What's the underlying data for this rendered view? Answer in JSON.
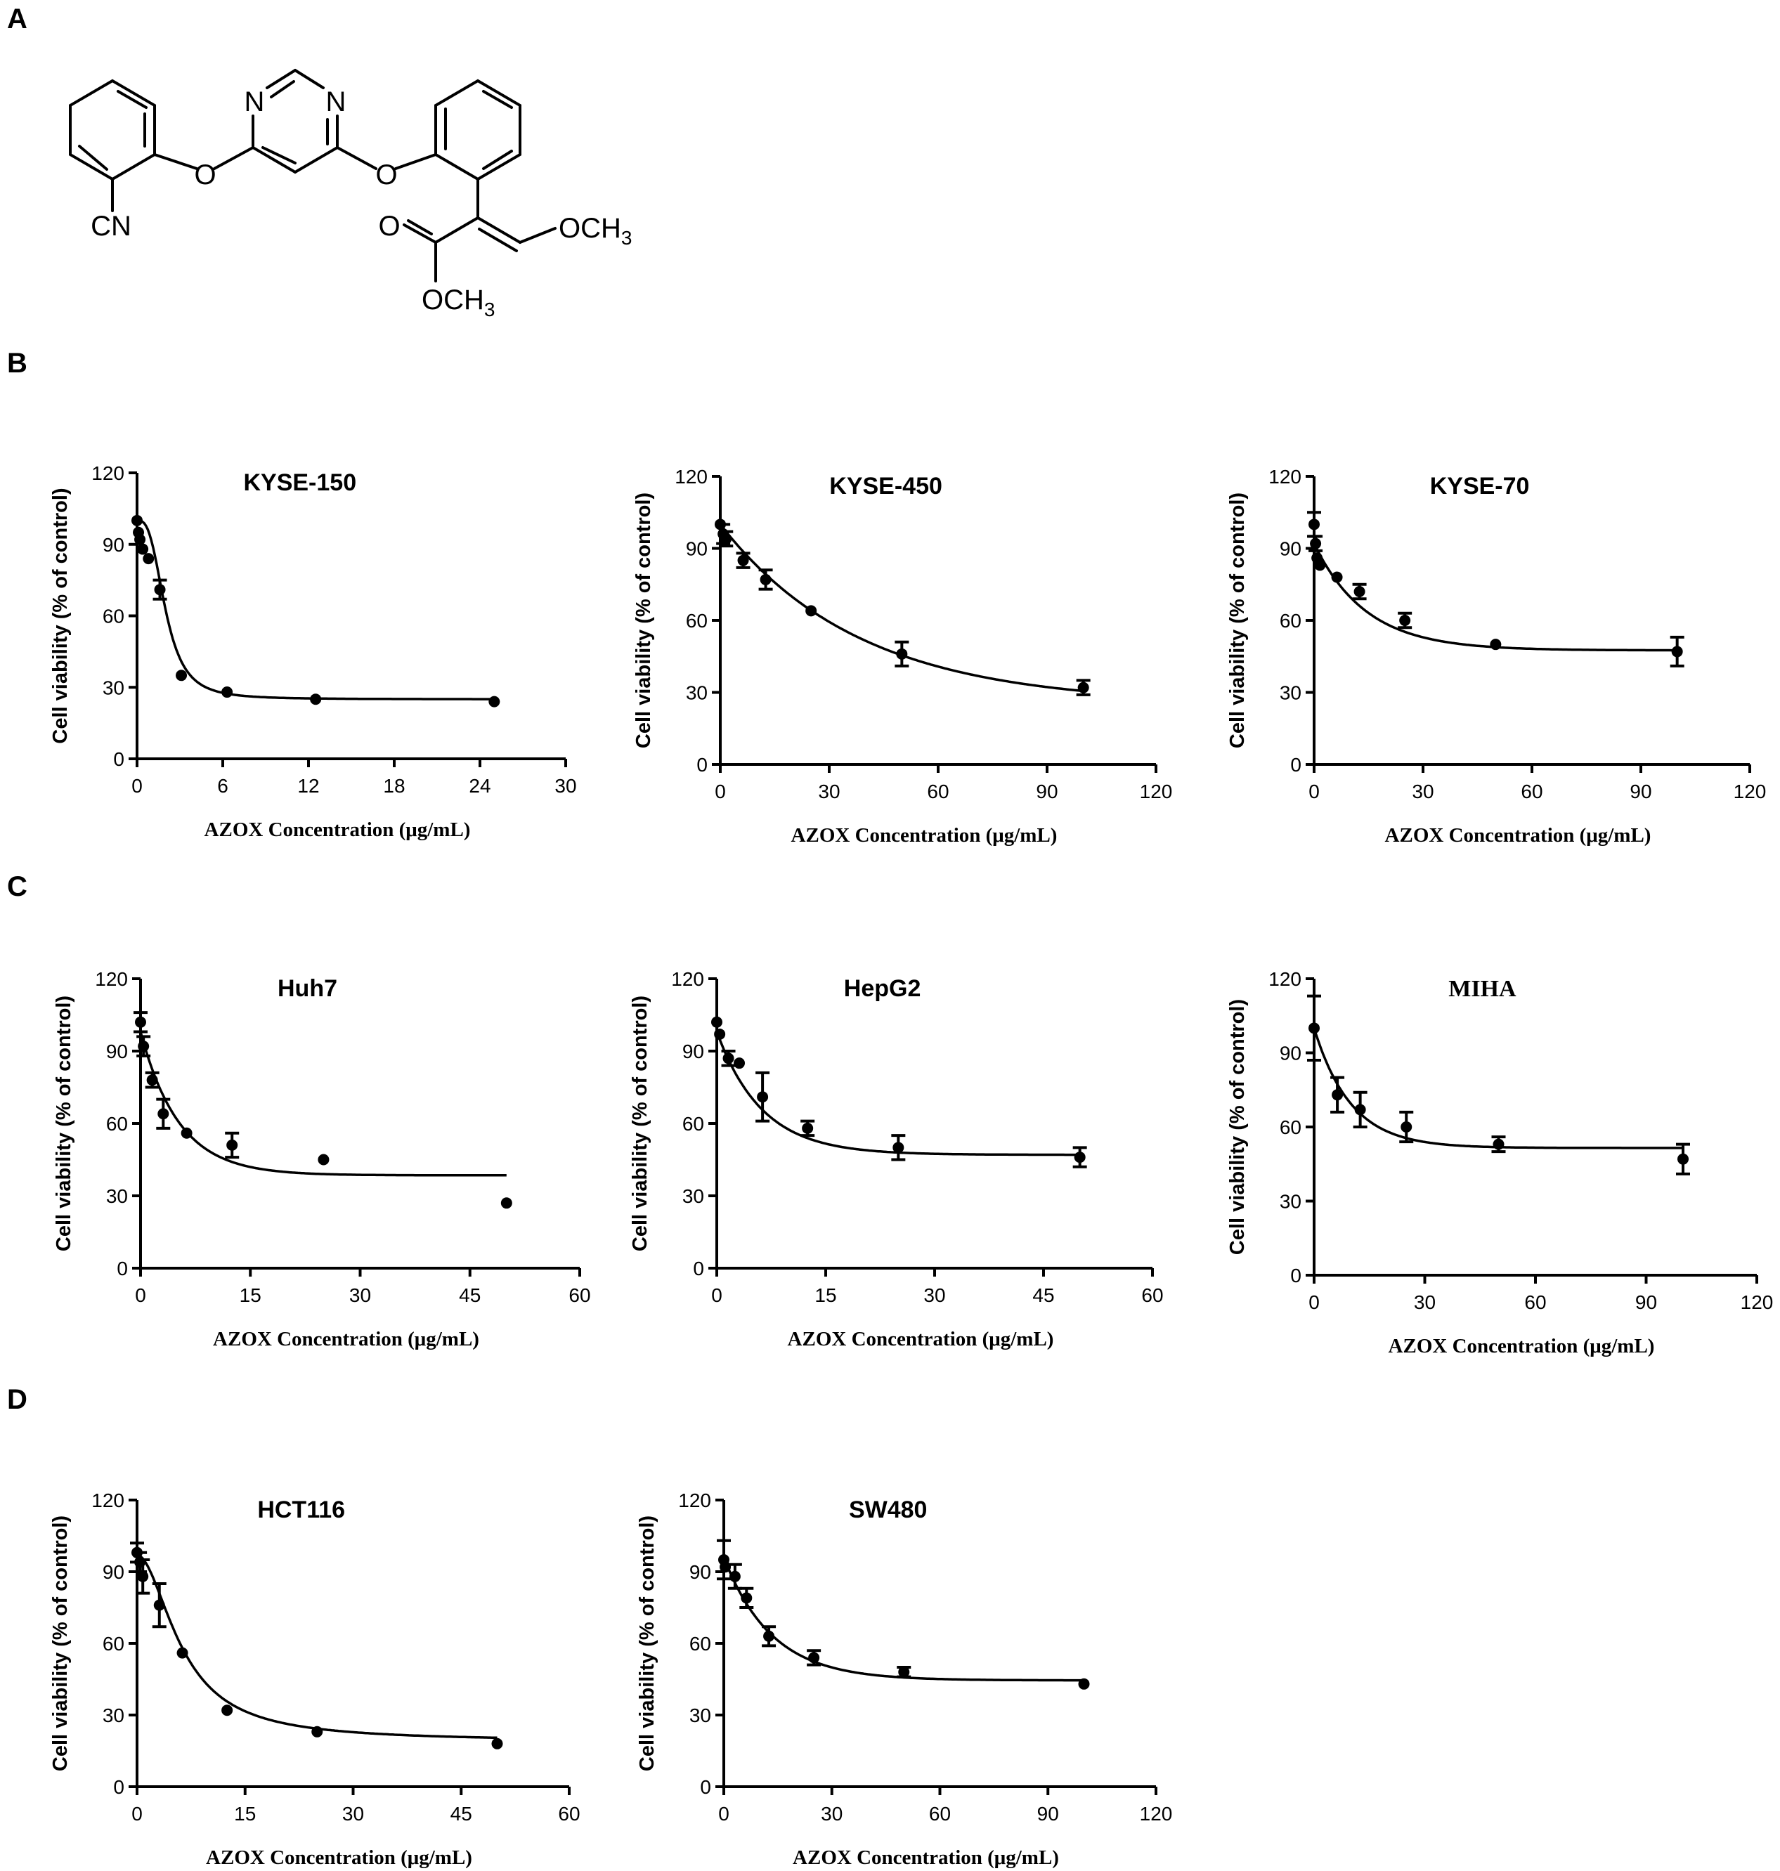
{
  "panel_labels": {
    "a": "A",
    "b": "B",
    "c": "C",
    "d": "D"
  },
  "molecule": {
    "n1": "N",
    "n2": "N",
    "o1": "O",
    "o2": "O",
    "cn": "CN",
    "ome": "OCH",
    "ome_sub": "3",
    "ester": "OCH",
    "ester_sub": "3"
  },
  "chart_data": [
    {
      "type": "scatter",
      "title": "KYSE-150",
      "xlabel": "AZOX Concentration (μg/mL)",
      "ylabel": "Cell viability (% of control)",
      "xlim": [
        0,
        30
      ],
      "ylim": [
        0,
        120
      ],
      "xticks": [
        0,
        6,
        12,
        18,
        24,
        30
      ],
      "yticks": [
        0,
        30,
        60,
        90,
        120
      ],
      "grid": false,
      "series": [
        {
          "x": [
            0,
            0.1,
            0.2,
            0.4,
            0.8,
            1.6,
            3.1,
            6.3,
            12.5,
            25
          ],
          "y": [
            100,
            95,
            92,
            88,
            84,
            71,
            35,
            28,
            25,
            24
          ],
          "err": [
            0,
            0,
            0,
            0,
            0,
            4,
            0,
            0,
            0,
            0
          ]
        }
      ],
      "fit": {
        "top": 100,
        "bottom": 25,
        "ec50": 2.0,
        "hill": 3.0,
        "xmax": 25
      }
    },
    {
      "type": "scatter",
      "title": "KYSE-450",
      "xlabel": "AZOX Concentration (μg/mL)",
      "ylabel": "Cell viability (% of control)",
      "xlim": [
        0,
        120
      ],
      "ylim": [
        0,
        120
      ],
      "xticks": [
        0,
        30,
        60,
        90,
        120
      ],
      "yticks": [
        0,
        30,
        60,
        90,
        120
      ],
      "grid": false,
      "series": [
        {
          "x": [
            0,
            0.8,
            1.6,
            6.3,
            12.5,
            25,
            50,
            100
          ],
          "y": [
            100,
            96,
            94,
            85,
            77,
            64,
            46,
            32
          ],
          "err": [
            0,
            4,
            3,
            3,
            4,
            0,
            5,
            3
          ]
        }
      ],
      "fit": {
        "top": 100,
        "bottom": 25,
        "k": 0.026,
        "xmax": 100
      }
    },
    {
      "type": "scatter",
      "title": "KYSE-70",
      "xlabel": "AZOX Concentration (μg/mL)",
      "ylabel": "Cell viability (% of control)",
      "xlim": [
        0,
        120
      ],
      "ylim": [
        0,
        120
      ],
      "xticks": [
        0,
        30,
        60,
        90,
        120
      ],
      "yticks": [
        0,
        30,
        60,
        90,
        120
      ],
      "grid": false,
      "series": [
        {
          "x": [
            0,
            0.4,
            0.8,
            1.6,
            6.3,
            12.5,
            25,
            50,
            100
          ],
          "y": [
            100,
            92,
            86,
            83,
            78,
            72,
            60,
            50,
            47
          ],
          "err": [
            5,
            3,
            0,
            0,
            0,
            3,
            3,
            0,
            6
          ]
        }
      ],
      "fit": {
        "top": 92,
        "bottom": 47.5,
        "k": 0.07,
        "xmax": 100
      }
    },
    {
      "type": "scatter",
      "title": "Huh7",
      "xlabel": "AZOX Concentration (μg/mL)",
      "ylabel": "Cell viability (% of control)",
      "xlim": [
        0,
        60
      ],
      "ylim": [
        0,
        120
      ],
      "xticks": [
        0,
        15,
        30,
        45,
        60
      ],
      "yticks": [
        0,
        30,
        60,
        90,
        120
      ],
      "grid": false,
      "series": [
        {
          "x": [
            0,
            0.4,
            1.6,
            3.1,
            6.3,
            12.5,
            25,
            50
          ],
          "y": [
            102,
            92,
            78,
            64,
            56,
            51,
            45,
            27
          ],
          "err": [
            4,
            4,
            3,
            6,
            0,
            5,
            0,
            0
          ]
        }
      ],
      "fit": {
        "top": 98,
        "bottom": 38.5,
        "k": 0.19,
        "xmax": 50
      }
    },
    {
      "type": "scatter",
      "title": "HepG2",
      "xlabel": "AZOX Concentration (μg/mL)",
      "ylabel": "Cell viability (% of control)",
      "xlim": [
        0,
        60
      ],
      "ylim": [
        0,
        120
      ],
      "xticks": [
        0,
        15,
        30,
        45,
        60
      ],
      "yticks": [
        0,
        30,
        60,
        90,
        120
      ],
      "grid": false,
      "series": [
        {
          "x": [
            0,
            0.4,
            1.6,
            3.1,
            6.3,
            12.5,
            25,
            50
          ],
          "y": [
            102,
            97,
            87,
            85,
            71,
            58,
            50,
            46
          ],
          "err": [
            0,
            0,
            3,
            0,
            10,
            3,
            5,
            4
          ]
        }
      ],
      "fit": {
        "top": 98,
        "bottom": 47,
        "k": 0.16,
        "xmax": 50
      }
    },
    {
      "type": "scatter",
      "title": "MIHA",
      "xlabel": "AZOX Concentration (μg/mL)",
      "ylabel": "Cell viability (% of control)",
      "xlim": [
        0,
        120
      ],
      "ylim": [
        0,
        120
      ],
      "xticks": [
        0,
        30,
        60,
        90,
        120
      ],
      "yticks": [
        0,
        30,
        60,
        90,
        120
      ],
      "grid": false,
      "series": [
        {
          "x": [
            0,
            6.3,
            12.5,
            25,
            50,
            100
          ],
          "y": [
            100,
            73,
            67,
            60,
            53,
            47
          ],
          "err": [
            13,
            7,
            7,
            6,
            3,
            6
          ]
        }
      ],
      "fit": {
        "top": 100,
        "bottom": 51.5,
        "k": 0.1,
        "xmax": 100
      }
    },
    {
      "type": "scatter",
      "title": "HCT116",
      "xlabel": "AZOX Concentration (μg/mL)",
      "ylabel": "Cell viability (% of control)",
      "xlim": [
        0,
        60
      ],
      "ylim": [
        0,
        120
      ],
      "xticks": [
        0,
        15,
        30,
        45,
        60
      ],
      "yticks": [
        0,
        30,
        60,
        90,
        120
      ],
      "grid": false,
      "series": [
        {
          "x": [
            0,
            0.4,
            0.8,
            3.1,
            6.3,
            12.5,
            25,
            50
          ],
          "y": [
            98,
            94,
            88,
            76,
            56,
            32,
            23,
            18
          ],
          "err": [
            4,
            4,
            7,
            9,
            0,
            0,
            0,
            0
          ]
        }
      ],
      "fit": {
        "top": 97,
        "bottom": 19,
        "ec50": 6.3,
        "hill": 1.9,
        "xmax": 50
      }
    },
    {
      "type": "scatter",
      "title": "SW480",
      "xlabel": "AZOX Concentration (μg/mL)",
      "ylabel": "Cell viability (% of control)",
      "xlim": [
        0,
        120
      ],
      "ylim": [
        0,
        120
      ],
      "xticks": [
        0,
        30,
        60,
        90,
        120
      ],
      "yticks": [
        0,
        30,
        60,
        90,
        120
      ],
      "grid": false,
      "series": [
        {
          "x": [
            0,
            0.4,
            3.1,
            6.3,
            12.5,
            25,
            50,
            100
          ],
          "y": [
            95,
            92,
            88,
            79,
            63,
            54,
            48,
            43
          ],
          "err": [
            8,
            0,
            5,
            4,
            4,
            3,
            2,
            0
          ]
        }
      ],
      "fit": {
        "top": 96,
        "bottom": 44.5,
        "k": 0.075,
        "xmax": 100
      }
    }
  ]
}
